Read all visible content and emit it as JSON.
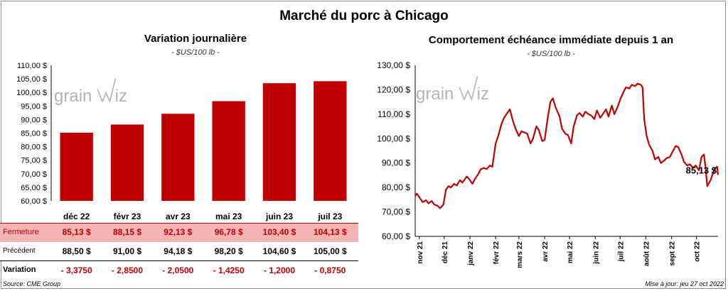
{
  "main_title": "Marché du porc à Chicago",
  "source": "Source: CME Group",
  "updated": "Mise à jour: jeu 27 oct 2022",
  "watermark": {
    "text_left": "grain",
    "text_right": "iz",
    "color": "#b3b3b3"
  },
  "colors": {
    "bar": "#c00000",
    "line": "#c00000",
    "fermeture_bg": "#f4b4b4",
    "fermeture_text": "#c00000",
    "variation_text": "#c00000"
  },
  "table": {
    "fermeture_label": "Fermeture",
    "precedent_label": "Précédent",
    "variation_label": "Variation",
    "fermeture": [
      "85,13  $",
      "88,15  $",
      "92,13  $",
      "96,78  $",
      "103,40  $",
      "104,13  $"
    ],
    "precedent": [
      "88,50  $",
      "91,00  $",
      "94,18  $",
      "98,20  $",
      "104,60  $",
      "105,00  $"
    ],
    "variation": [
      "- 3,3750",
      "- 2,8500",
      "- 2,0500",
      "- 1,4250",
      "- 1,2000",
      "- 0,8750"
    ]
  },
  "chart_data": [
    {
      "type": "bar",
      "title": "Variation  journalière",
      "subtitle": "- $US/100 lb -",
      "categories": [
        "déc 22",
        "févr 23",
        "avr 23",
        "mai 23",
        "juin 23",
        "juil 23"
      ],
      "values": [
        85.13,
        88.15,
        92.13,
        96.78,
        103.4,
        104.13
      ],
      "ylim": [
        60,
        110
      ],
      "yticks": [
        60,
        65,
        70,
        75,
        80,
        85,
        90,
        95,
        100,
        105,
        110
      ],
      "ytick_labels": [
        "60,00 $",
        "65,00 $",
        "70,00 $",
        "75,00 $",
        "80,00 $",
        "85,00 $",
        "90,00 $",
        "95,00 $",
        "100,00 $",
        "105,00 $",
        "110,00 $"
      ],
      "grid": false
    },
    {
      "type": "line",
      "title": "Comportement  échéance immédiate depuis 1 an",
      "subtitle": "- $US/100 lb -",
      "ylim": [
        60,
        130
      ],
      "yticks": [
        60,
        70,
        80,
        90,
        100,
        110,
        120,
        130
      ],
      "ytick_labels": [
        "60,00 $",
        "70,00 $",
        "80,00 $",
        "90,00 $",
        "100,00 $",
        "110,00 $",
        "120,00 $",
        "130,00 $"
      ],
      "x_start": "2021-10-27",
      "x_end": "2022-10-27",
      "xtick_dates": [
        "2021-11-01",
        "2021-12-01",
        "2022-01-01",
        "2022-02-01",
        "2022-03-01",
        "2022-04-01",
        "2022-05-01",
        "2022-06-01",
        "2022-07-01",
        "2022-08-01",
        "2022-09-01",
        "2022-10-01"
      ],
      "xtick_labels": [
        "nov 21",
        "déc 21",
        "janv 22",
        "févr 22",
        "mars 22",
        "avr 22",
        "mai 22",
        "juin 22",
        "juil 22",
        "août 22",
        "sept 22",
        "oct 22"
      ],
      "last_value_label": "85,13 $",
      "grid": false,
      "points": [
        [
          "2021-10-27",
          76.5
        ],
        [
          "2021-10-29",
          77.5
        ],
        [
          "2021-11-02",
          75.5
        ],
        [
          "2021-11-05",
          74.0
        ],
        [
          "2021-11-09",
          74.8
        ],
        [
          "2021-11-12",
          73.5
        ],
        [
          "2021-11-16",
          74.5
        ],
        [
          "2021-11-19",
          73.0
        ],
        [
          "2021-11-23",
          72.5
        ],
        [
          "2021-11-26",
          71.5
        ],
        [
          "2021-11-30",
          73.0
        ],
        [
          "2021-12-03",
          79.0
        ],
        [
          "2021-12-06",
          80.5
        ],
        [
          "2021-12-09",
          80.0
        ],
        [
          "2021-12-13",
          81.5
        ],
        [
          "2021-12-16",
          80.8
        ],
        [
          "2021-12-20",
          83.0
        ],
        [
          "2021-12-23",
          82.0
        ],
        [
          "2021-12-28",
          84.5
        ],
        [
          "2021-12-31",
          83.5
        ],
        [
          "2022-01-04",
          81.5
        ],
        [
          "2022-01-07",
          83.5
        ],
        [
          "2022-01-11",
          85.5
        ],
        [
          "2022-01-14",
          87.5
        ],
        [
          "2022-01-18",
          88.0
        ],
        [
          "2022-01-21",
          87.5
        ],
        [
          "2022-01-25",
          89.0
        ],
        [
          "2022-01-28",
          88.5
        ],
        [
          "2022-02-01",
          98.0
        ],
        [
          "2022-02-04",
          101.0
        ],
        [
          "2022-02-08",
          106.0
        ],
        [
          "2022-02-11",
          108.5
        ],
        [
          "2022-02-15",
          110.5
        ],
        [
          "2022-02-18",
          112.0
        ],
        [
          "2022-02-22",
          107.0
        ],
        [
          "2022-02-25",
          104.0
        ],
        [
          "2022-03-01",
          101.0
        ],
        [
          "2022-03-04",
          103.0
        ],
        [
          "2022-03-08",
          102.5
        ],
        [
          "2022-03-11",
          102.0
        ],
        [
          "2022-03-15",
          98.0
        ],
        [
          "2022-03-18",
          100.0
        ],
        [
          "2022-03-22",
          105.0
        ],
        [
          "2022-03-25",
          103.5
        ],
        [
          "2022-03-29",
          99.0
        ],
        [
          "2022-04-01",
          99.5
        ],
        [
          "2022-04-05",
          109.0
        ],
        [
          "2022-04-08",
          115.0
        ],
        [
          "2022-04-11",
          116.5
        ],
        [
          "2022-04-14",
          113.0
        ],
        [
          "2022-04-19",
          109.0
        ],
        [
          "2022-04-22",
          104.0
        ],
        [
          "2022-04-26",
          102.0
        ],
        [
          "2022-04-29",
          101.5
        ],
        [
          "2022-05-03",
          98.0
        ],
        [
          "2022-05-06",
          105.0
        ],
        [
          "2022-05-10",
          109.5
        ],
        [
          "2022-05-13",
          110.5
        ],
        [
          "2022-05-17",
          109.0
        ],
        [
          "2022-05-20",
          111.0
        ],
        [
          "2022-05-24",
          110.0
        ],
        [
          "2022-05-27",
          109.5
        ],
        [
          "2022-05-31",
          108.0
        ],
        [
          "2022-06-03",
          111.5
        ],
        [
          "2022-06-07",
          108.5
        ],
        [
          "2022-06-10",
          110.0
        ],
        [
          "2022-06-14",
          112.0
        ],
        [
          "2022-06-17",
          109.0
        ],
        [
          "2022-06-21",
          113.5
        ],
        [
          "2022-06-24",
          110.0
        ],
        [
          "2022-06-28",
          113.0
        ],
        [
          "2022-07-01",
          116.0
        ],
        [
          "2022-07-05",
          119.0
        ],
        [
          "2022-07-08",
          121.0
        ],
        [
          "2022-07-12",
          120.5
        ],
        [
          "2022-07-15",
          122.0
        ],
        [
          "2022-07-19",
          121.5
        ],
        [
          "2022-07-22",
          122.5
        ],
        [
          "2022-07-26",
          122.0
        ],
        [
          "2022-07-28",
          121.0
        ],
        [
          "2022-07-30",
          108.0
        ],
        [
          "2022-08-02",
          101.0
        ],
        [
          "2022-08-05",
          97.5
        ],
        [
          "2022-08-09",
          95.0
        ],
        [
          "2022-08-12",
          91.5
        ],
        [
          "2022-08-16",
          92.5
        ],
        [
          "2022-08-19",
          90.0
        ],
        [
          "2022-08-23",
          91.0
        ],
        [
          "2022-08-26",
          92.0
        ],
        [
          "2022-08-30",
          92.5
        ],
        [
          "2022-09-02",
          94.5
        ],
        [
          "2022-09-06",
          97.0
        ],
        [
          "2022-09-09",
          96.5
        ],
        [
          "2022-09-13",
          93.5
        ],
        [
          "2022-09-16",
          90.5
        ],
        [
          "2022-09-20",
          89.0
        ],
        [
          "2022-09-23",
          89.5
        ],
        [
          "2022-09-27",
          88.0
        ],
        [
          "2022-09-30",
          89.0
        ],
        [
          "2022-10-04",
          87.0
        ],
        [
          "2022-10-07",
          92.5
        ],
        [
          "2022-10-10",
          93.5
        ],
        [
          "2022-10-12",
          88.0
        ],
        [
          "2022-10-14",
          80.5
        ],
        [
          "2022-10-18",
          83.0
        ],
        [
          "2022-10-21",
          86.0
        ],
        [
          "2022-10-24",
          88.0
        ],
        [
          "2022-10-26",
          88.5
        ],
        [
          "2022-10-27",
          85.13
        ]
      ]
    }
  ]
}
